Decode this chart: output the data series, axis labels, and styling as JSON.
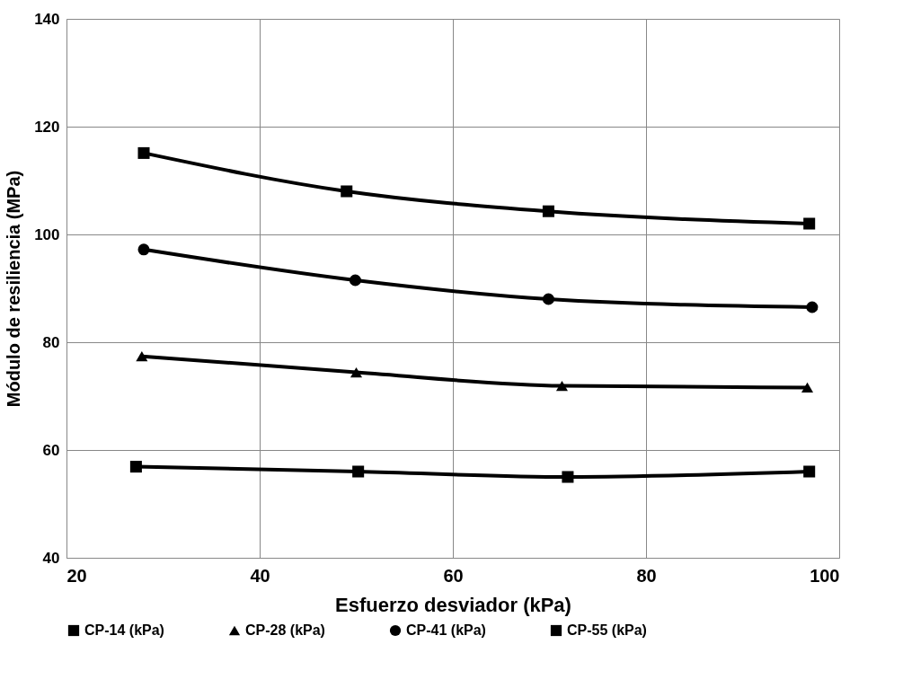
{
  "chart_data": {
    "type": "line",
    "xlabel": "Esfuerzo desviador (kPa)",
    "ylabel": "Módulo de resiliencia (MPa)",
    "xlim": [
      20,
      100
    ],
    "xticks": [
      20,
      40,
      60,
      80,
      100
    ],
    "ylim": [
      40,
      140
    ],
    "yticks": [
      40,
      60,
      80,
      100,
      120,
      140
    ],
    "grid": true,
    "legend": "bottom",
    "line_style": "solid",
    "series": [
      {
        "name": "CP-14 (kPa)",
        "color": "#000000",
        "marker": "square",
        "x": [
          27.2,
          50.2,
          71.9,
          96.9
        ],
        "values": [
          56.9,
          56.0,
          55.0,
          56.0
        ]
      },
      {
        "name": "CP-28 (kPa)",
        "color": "#000000",
        "marker": "triangle",
        "x": [
          27.8,
          50.0,
          71.3,
          96.7
        ],
        "values": [
          77.4,
          74.4,
          71.9,
          71.6
        ]
      },
      {
        "name": "CP-41 (kPa)",
        "color": "#000000",
        "marker": "circle",
        "x": [
          28.0,
          49.9,
          69.9,
          97.2
        ],
        "values": [
          97.2,
          91.5,
          88.0,
          86.5
        ]
      },
      {
        "name": "CP-55 (kPa)",
        "color": "#000000",
        "marker": "square",
        "x": [
          28.0,
          49.0,
          69.9,
          96.9
        ],
        "values": [
          115.1,
          108.0,
          104.3,
          102.0
        ]
      }
    ]
  }
}
